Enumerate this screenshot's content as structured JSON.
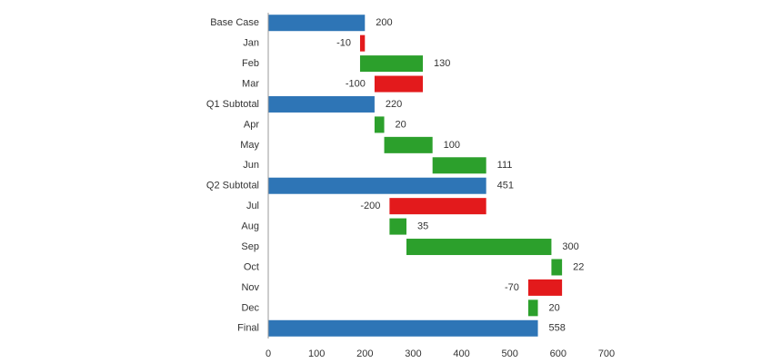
{
  "chart_data": {
    "type": "waterfall",
    "orientation": "horizontal",
    "categories": [
      "Base Case",
      "Jan",
      "Feb",
      "Mar",
      "Q1 Subtotal",
      "Apr",
      "May",
      "Jun",
      "Q2 Subtotal",
      "Jul",
      "Aug",
      "Sep",
      "Oct",
      "Nov",
      "Dec",
      "Final"
    ],
    "values": [
      200,
      -10,
      130,
      -100,
      220,
      20,
      100,
      111,
      451,
      -200,
      35,
      300,
      22,
      -70,
      20,
      558
    ],
    "total_indices": [
      0,
      4,
      8,
      15
    ],
    "colors": {
      "total": "#2e75b6",
      "increase": "#2ca02c",
      "decrease": "#e31a1c"
    },
    "xlim": [
      0,
      700
    ],
    "xticks": [
      0,
      100,
      200,
      300,
      400,
      500,
      600,
      700
    ]
  }
}
